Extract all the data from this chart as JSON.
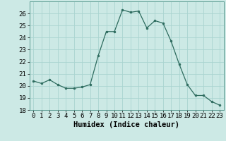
{
  "x": [
    0,
    1,
    2,
    3,
    4,
    5,
    6,
    7,
    8,
    9,
    10,
    11,
    12,
    13,
    14,
    15,
    16,
    17,
    18,
    19,
    20,
    21,
    22,
    23
  ],
  "y": [
    20.4,
    20.2,
    20.5,
    20.1,
    19.8,
    19.8,
    19.9,
    20.1,
    22.5,
    24.5,
    24.5,
    26.3,
    26.1,
    26.2,
    24.8,
    25.4,
    25.2,
    23.7,
    21.8,
    20.1,
    19.2,
    19.2,
    18.7,
    18.4
  ],
  "line_color": "#2d6b5e",
  "marker": "o",
  "marker_size": 2.0,
  "bg_color": "#cce9e5",
  "grid_color": "#aad4d0",
  "xlabel": "Humidex (Indice chaleur)",
  "ylim": [
    18,
    27
  ],
  "yticks": [
    18,
    19,
    20,
    21,
    22,
    23,
    24,
    25,
    26
  ],
  "xlim": [
    -0.5,
    23.5
  ],
  "xticks": [
    0,
    1,
    2,
    3,
    4,
    5,
    6,
    7,
    8,
    9,
    10,
    11,
    12,
    13,
    14,
    15,
    16,
    17,
    18,
    19,
    20,
    21,
    22,
    23
  ],
  "xlabel_fontsize": 7.5,
  "tick_fontsize": 6.5
}
